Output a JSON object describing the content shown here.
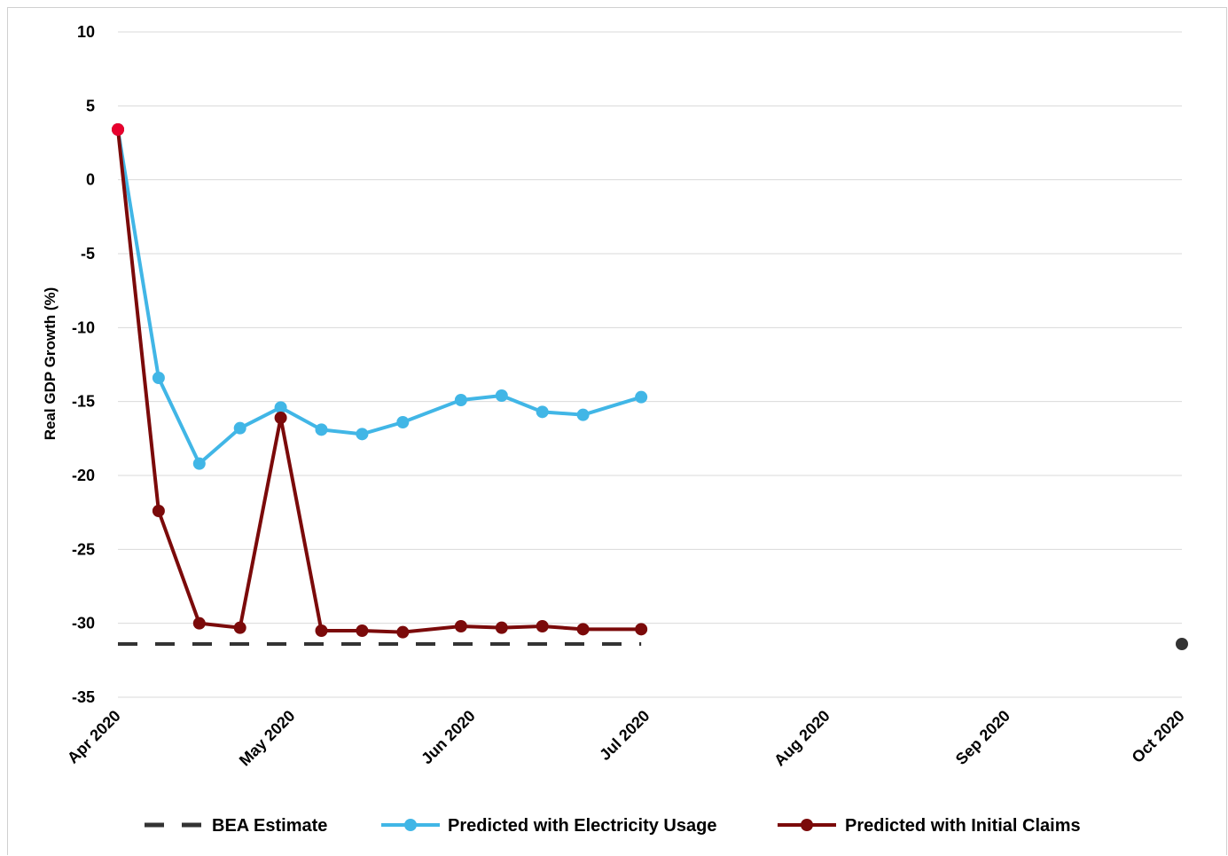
{
  "chart_data": {
    "type": "line",
    "ylabel": "Real GDP Growth (%)",
    "ylim": [
      -35,
      10
    ],
    "yticks": [
      10,
      5,
      0,
      -5,
      -10,
      -15,
      -20,
      -25,
      -30,
      -35
    ],
    "xlim": [
      "2020-04-01",
      "2020-10-01"
    ],
    "xticks": [
      {
        "date": "2020-04-01",
        "label": "Apr 2020"
      },
      {
        "date": "2020-05-01",
        "label": "May 2020"
      },
      {
        "date": "2020-06-01",
        "label": "Jun 2020"
      },
      {
        "date": "2020-07-01",
        "label": "Jul 2020"
      },
      {
        "date": "2020-08-01",
        "label": "Aug 2020"
      },
      {
        "date": "2020-09-01",
        "label": "Sep 2020"
      },
      {
        "date": "2020-10-01",
        "label": "Oct 2020"
      }
    ],
    "grid": "horizontal",
    "legend_position": "bottom",
    "series": [
      {
        "name": "BEA Estimate",
        "style": "dashed",
        "color": "#333333",
        "x": [
          "2020-04-01",
          "2020-06-30"
        ],
        "y": [
          -31.4,
          -31.4
        ]
      },
      {
        "name": "Predicted with Electricity Usage",
        "style": "line-marker",
        "color": "#41b6e6",
        "x": [
          "2020-04-01",
          "2020-04-08",
          "2020-04-15",
          "2020-04-22",
          "2020-04-29",
          "2020-05-06",
          "2020-05-13",
          "2020-05-20",
          "2020-05-30",
          "2020-06-06",
          "2020-06-13",
          "2020-06-20",
          "2020-06-30"
        ],
        "y": [
          3.4,
          -13.4,
          -19.2,
          -16.8,
          -15.4,
          -16.9,
          -17.2,
          -16.4,
          -14.9,
          -14.6,
          -15.7,
          -15.9,
          -14.7
        ]
      },
      {
        "name": "Predicted with Initial Claims",
        "style": "line-marker",
        "color": "#7b0a0a",
        "x": [
          "2020-04-01",
          "2020-04-08",
          "2020-04-15",
          "2020-04-22",
          "2020-04-29",
          "2020-05-06",
          "2020-05-13",
          "2020-05-20",
          "2020-05-30",
          "2020-06-06",
          "2020-06-13",
          "2020-06-20",
          "2020-06-30"
        ],
        "y": [
          3.4,
          -22.4,
          -30.0,
          -30.3,
          -16.1,
          -30.5,
          -30.5,
          -30.6,
          -30.2,
          -30.3,
          -30.2,
          -30.4,
          -30.4
        ]
      }
    ],
    "highlight_points": [
      {
        "x": "2020-04-01",
        "y": 3.4,
        "color": "#e8002d"
      },
      {
        "x": "2020-10-01",
        "y": -31.4,
        "color": "#333333"
      }
    ]
  }
}
